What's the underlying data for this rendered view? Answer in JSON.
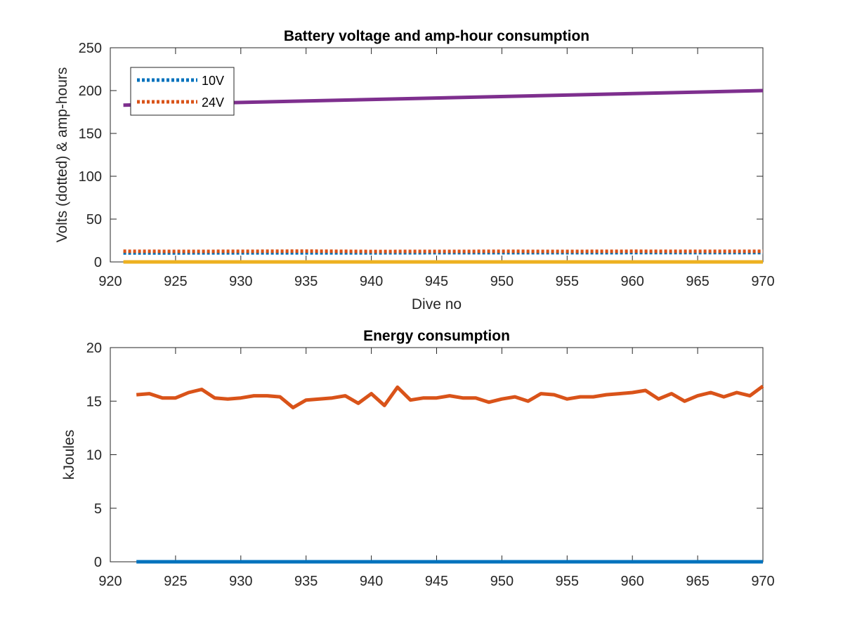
{
  "chart_data": [
    {
      "type": "line",
      "title": "Battery voltage and amp-hour consumption",
      "xlabel": "Dive no",
      "ylabel": "Volts (dotted) & amp-hours",
      "xlim": [
        920,
        970
      ],
      "ylim": [
        0,
        250
      ],
      "xticks": [
        "920",
        "925",
        "930",
        "935",
        "940",
        "945",
        "950",
        "955",
        "960",
        "965",
        "970"
      ],
      "yticks": [
        "0",
        "50",
        "100",
        "150",
        "200",
        "250"
      ],
      "legend_position": "top-left",
      "series": [
        {
          "name": "10V",
          "style": "dotted",
          "color": "#0072BD",
          "x": [
            921,
            925,
            930,
            935,
            940,
            945,
            950,
            955,
            960,
            965,
            970
          ],
          "y": [
            10.5,
            10.5,
            10.6,
            10.6,
            10.6,
            10.7,
            10.7,
            10.7,
            10.8,
            10.8,
            10.8
          ]
        },
        {
          "name": "24V",
          "style": "dotted",
          "color": "#D95319",
          "x": [
            921,
            925,
            930,
            935,
            940,
            945,
            950,
            955,
            960,
            965,
            970
          ],
          "y": [
            12.5,
            12.3,
            12.4,
            12.6,
            12.2,
            12.3,
            12.4,
            12.3,
            12.5,
            12.4,
            12.4
          ]
        },
        {
          "style": "solid",
          "color": "#7E2F8E",
          "x": [
            921,
            970
          ],
          "y": [
            183,
            200
          ]
        },
        {
          "style": "solid",
          "color": "#EDB120",
          "x": [
            921,
            970
          ],
          "y": [
            0,
            0
          ]
        }
      ]
    },
    {
      "type": "line",
      "title": "Energy consumption",
      "xlabel": "",
      "ylabel": "kJoules",
      "xlim": [
        920,
        970
      ],
      "ylim": [
        0,
        20
      ],
      "xticks": [
        "920",
        "925",
        "930",
        "935",
        "940",
        "945",
        "950",
        "955",
        "960",
        "965",
        "970"
      ],
      "yticks": [
        "0",
        "5",
        "10",
        "15",
        "20"
      ],
      "series": [
        {
          "style": "solid",
          "color": "#D95319",
          "x": [
            922,
            923,
            924,
            925,
            926,
            927,
            928,
            929,
            930,
            931,
            932,
            933,
            934,
            935,
            936,
            937,
            938,
            939,
            940,
            941,
            942,
            943,
            944,
            945,
            946,
            947,
            948,
            949,
            950,
            951,
            952,
            953,
            954,
            955,
            956,
            957,
            958,
            959,
            960,
            961,
            962,
            963,
            964,
            965,
            966,
            967,
            968,
            969,
            970
          ],
          "y": [
            15.6,
            15.7,
            15.3,
            15.3,
            15.8,
            16.1,
            15.3,
            15.2,
            15.3,
            15.5,
            15.5,
            15.4,
            14.4,
            15.1,
            15.2,
            15.3,
            15.5,
            14.8,
            15.7,
            14.6,
            16.3,
            15.1,
            15.3,
            15.3,
            15.5,
            15.3,
            15.3,
            14.9,
            15.2,
            15.4,
            15.0,
            15.7,
            15.6,
            15.2,
            15.4,
            15.4,
            15.6,
            15.7,
            15.8,
            16.0,
            15.2,
            15.7,
            15.0,
            15.5,
            15.8,
            15.4,
            15.8,
            15.5,
            16.4
          ]
        },
        {
          "style": "solid",
          "color": "#0072BD",
          "x": [
            922,
            970
          ],
          "y": [
            0,
            0
          ]
        }
      ]
    }
  ]
}
